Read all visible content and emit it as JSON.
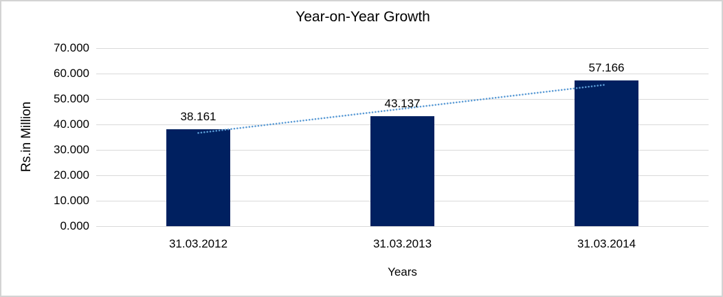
{
  "chart_data": {
    "type": "bar",
    "title": "Year-on-Year Growth",
    "xlabel": "Years",
    "ylabel": "Rs.in Million",
    "categories": [
      "31.03.2012",
      "31.03.2013",
      "31.03.2014"
    ],
    "values": [
      38.161,
      43.137,
      57.166
    ],
    "data_labels": [
      "38.161",
      "43.137",
      "57.166"
    ],
    "y_tick_labels": [
      "0.000",
      "10.000",
      "20.000",
      "30.000",
      "40.000",
      "50.000",
      "60.000",
      "70.000"
    ],
    "ylim": [
      0,
      70
    ],
    "y_step": 10,
    "grid": true,
    "legend": "none",
    "trendline": {
      "kind": "linear",
      "style": "dotted"
    },
    "colors": {
      "bar": "#002060",
      "trendline": "#5b9bd5",
      "gridline": "#d9d9d9",
      "frame_border": "#d3d3d3",
      "text": "#000000",
      "background": "#ffffff"
    }
  }
}
